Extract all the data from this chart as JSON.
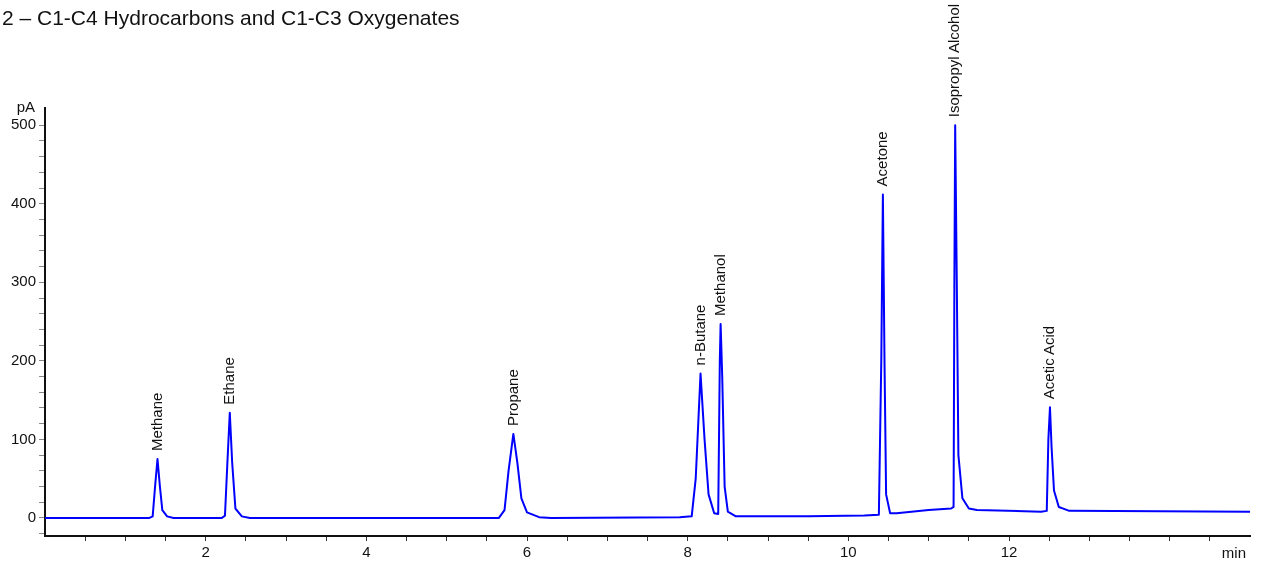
{
  "chart_data": {
    "type": "line",
    "title": "2 – C1-C4 Hydrocarbons and C1-C3 Oxygenates",
    "xlabel": "min",
    "ylabel": "pA",
    "x": [
      0,
      1.3,
      1.34,
      1.37,
      1.4,
      1.43,
      1.46,
      1.52,
      1.6,
      2.2,
      2.24,
      2.27,
      2.3,
      2.33,
      2.37,
      2.45,
      2.55,
      5.65,
      5.72,
      5.77,
      5.83,
      5.88,
      5.93,
      6.0,
      6.15,
      6.3,
      7.9,
      8.05,
      8.1,
      8.16,
      8.21,
      8.26,
      8.33,
      8.38,
      8.4,
      8.41,
      8.43,
      8.46,
      8.5,
      8.6,
      8.9,
      9.5,
      10.2,
      10.38,
      10.41,
      10.43,
      10.45,
      10.47,
      10.52,
      10.6,
      11.0,
      11.28,
      11.31,
      11.32,
      11.33,
      11.35,
      11.37,
      11.42,
      11.5,
      11.6,
      12.4,
      12.47,
      12.49,
      12.51,
      12.53,
      12.56,
      12.62,
      12.75,
      15
    ],
    "series": [
      {
        "color": "#0000ff",
        "values": [
          0,
          0,
          2,
          40,
          75,
          40,
          10,
          2,
          0,
          0,
          3,
          70,
          134,
          70,
          12,
          2,
          0,
          0,
          10,
          60,
          107,
          70,
          25,
          7,
          1,
          0,
          1,
          2,
          50,
          184,
          100,
          30,
          6,
          5,
          200,
          247,
          180,
          40,
          8,
          2,
          2,
          2,
          3,
          4,
          200,
          412,
          200,
          30,
          6,
          6,
          10,
          12,
          14,
          300,
          500,
          300,
          80,
          25,
          12,
          10,
          8,
          9,
          100,
          141,
          90,
          35,
          14,
          9,
          8
        ]
      }
    ],
    "xlim": [
      0,
      15
    ],
    "ylim": [
      -23,
      522
    ],
    "xticks": [
      {
        "value": 0.5,
        "label": null
      },
      {
        "value": 1,
        "label": null
      },
      {
        "value": 1.5,
        "label": null
      },
      2,
      {
        "value": 2.5,
        "label": null
      },
      {
        "value": 3,
        "label": null
      },
      {
        "value": 3.5,
        "label": null
      },
      4,
      {
        "value": 4.5,
        "label": null
      },
      {
        "value": 5,
        "label": null
      },
      {
        "value": 5.5,
        "label": null
      },
      6,
      {
        "value": 6.5,
        "label": null
      },
      {
        "value": 7,
        "label": null
      },
      {
        "value": 7.5,
        "label": null
      },
      8,
      {
        "value": 8.5,
        "label": null
      },
      {
        "value": 9,
        "label": null
      },
      {
        "value": 9.5,
        "label": null
      },
      10,
      {
        "value": 10.5,
        "label": null
      },
      {
        "value": 11,
        "label": null
      },
      {
        "value": 11.5,
        "label": null
      },
      12,
      {
        "value": 12.5,
        "label": null
      },
      {
        "value": 13,
        "label": null
      },
      {
        "value": 13.5,
        "label": null
      },
      {
        "value": 14,
        "label": null
      },
      {
        "value": 14.5,
        "label": null
      }
    ],
    "yticks": [
      {
        "value": -20,
        "label": null
      },
      0,
      {
        "value": 20,
        "label": null
      },
      {
        "value": 40,
        "label": null
      },
      {
        "value": 60,
        "label": null
      },
      {
        "value": 80,
        "label": null
      },
      100,
      {
        "value": 120,
        "label": null
      },
      {
        "value": 140,
        "label": null
      },
      {
        "value": 160,
        "label": null
      },
      {
        "value": 180,
        "label": null
      },
      200,
      {
        "value": 220,
        "label": null
      },
      {
        "value": 240,
        "label": null
      },
      {
        "value": 260,
        "label": null
      },
      {
        "value": 280,
        "label": null
      },
      300,
      {
        "value": 320,
        "label": null
      },
      {
        "value": 340,
        "label": null
      },
      {
        "value": 360,
        "label": null
      },
      {
        "value": 380,
        "label": null
      },
      400,
      {
        "value": 420,
        "label": null
      },
      {
        "value": 440,
        "label": null
      },
      {
        "value": 460,
        "label": null
      },
      {
        "value": 480,
        "label": null
      },
      500
    ],
    "grid": false,
    "legend": false,
    "marker": "none",
    "line_style": "solid",
    "annotations": [
      {
        "text": "Methane",
        "x": 1.4,
        "y": 75
      },
      {
        "text": "Ethane",
        "x": 2.3,
        "y": 134
      },
      {
        "text": "Propane",
        "x": 5.83,
        "y": 107
      },
      {
        "text": "n-Butane",
        "x": 8.16,
        "y": 184
      },
      {
        "text": "Methanol",
        "x": 8.41,
        "y": 247
      },
      {
        "text": "Acetone",
        "x": 10.43,
        "y": 412
      },
      {
        "text": "Isopropyl Alcohol",
        "x": 11.33,
        "y": 500
      },
      {
        "text": "Acetic Acid",
        "x": 12.51,
        "y": 141
      }
    ]
  }
}
